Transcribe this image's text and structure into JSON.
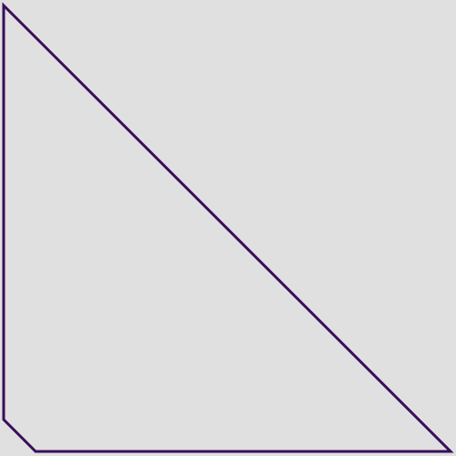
{
  "diagram": {
    "shape": "polygon",
    "description_text": "",
    "colors": {
      "background": "#e0e0e0",
      "stroke": "#3a0e5a"
    }
  }
}
